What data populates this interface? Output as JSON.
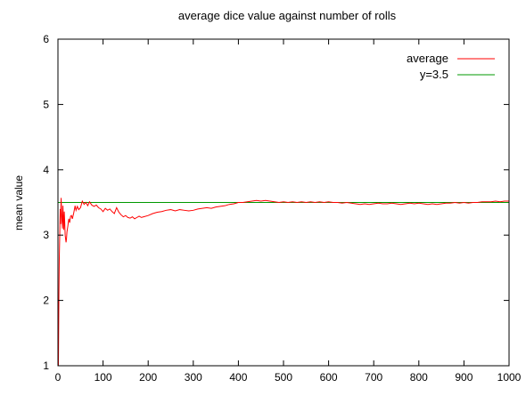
{
  "chart_data": {
    "type": "line",
    "title": "average dice value against number of rolls",
    "xlabel": "",
    "ylabel": "mean value",
    "xlim": [
      0,
      1000
    ],
    "ylim": [
      1,
      6
    ],
    "x_ticks": [
      0,
      100,
      200,
      300,
      400,
      500,
      600,
      700,
      800,
      900,
      1000
    ],
    "y_ticks": [
      1,
      2,
      3,
      4,
      5,
      6
    ],
    "grid": false,
    "legend_position": "top-right",
    "series": [
      {
        "name": "average",
        "color": "#ff0000",
        "points": [
          [
            1,
            1.0
          ],
          [
            2,
            2.0
          ],
          [
            3,
            2.67
          ],
          [
            4,
            3.0
          ],
          [
            5,
            3.4
          ],
          [
            6,
            3.17
          ],
          [
            7,
            3.57
          ],
          [
            8,
            3.38
          ],
          [
            9,
            3.22
          ],
          [
            10,
            3.1
          ],
          [
            11,
            3.45
          ],
          [
            12,
            3.25
          ],
          [
            13,
            3.08
          ],
          [
            14,
            3.36
          ],
          [
            15,
            3.2
          ],
          [
            16,
            3.0
          ],
          [
            17,
            2.94
          ],
          [
            18,
            2.89
          ],
          [
            19,
            2.95
          ],
          [
            20,
            3.05
          ],
          [
            22,
            3.14
          ],
          [
            24,
            3.25
          ],
          [
            26,
            3.19
          ],
          [
            28,
            3.29
          ],
          [
            30,
            3.3
          ],
          [
            32,
            3.25
          ],
          [
            35,
            3.34
          ],
          [
            38,
            3.45
          ],
          [
            40,
            3.38
          ],
          [
            43,
            3.44
          ],
          [
            46,
            3.39
          ],
          [
            50,
            3.42
          ],
          [
            54,
            3.52
          ],
          [
            58,
            3.47
          ],
          [
            62,
            3.5
          ],
          [
            66,
            3.45
          ],
          [
            70,
            3.51
          ],
          [
            75,
            3.46
          ],
          [
            80,
            3.44
          ],
          [
            85,
            3.46
          ],
          [
            90,
            3.42
          ],
          [
            95,
            3.4
          ],
          [
            100,
            3.36
          ],
          [
            105,
            3.41
          ],
          [
            110,
            3.38
          ],
          [
            115,
            3.4
          ],
          [
            120,
            3.36
          ],
          [
            125,
            3.33
          ],
          [
            130,
            3.42
          ],
          [
            135,
            3.35
          ],
          [
            140,
            3.31
          ],
          [
            145,
            3.28
          ],
          [
            150,
            3.3
          ],
          [
            155,
            3.27
          ],
          [
            160,
            3.26
          ],
          [
            165,
            3.28
          ],
          [
            170,
            3.25
          ],
          [
            175,
            3.27
          ],
          [
            180,
            3.29
          ],
          [
            185,
            3.27
          ],
          [
            190,
            3.28
          ],
          [
            200,
            3.3
          ],
          [
            210,
            3.33
          ],
          [
            220,
            3.35
          ],
          [
            230,
            3.36
          ],
          [
            240,
            3.38
          ],
          [
            250,
            3.39
          ],
          [
            260,
            3.37
          ],
          [
            270,
            3.39
          ],
          [
            280,
            3.38
          ],
          [
            290,
            3.37
          ],
          [
            300,
            3.38
          ],
          [
            310,
            3.4
          ],
          [
            320,
            3.41
          ],
          [
            330,
            3.42
          ],
          [
            340,
            3.41
          ],
          [
            350,
            3.43
          ],
          [
            360,
            3.44
          ],
          [
            370,
            3.45
          ],
          [
            380,
            3.47
          ],
          [
            390,
            3.48
          ],
          [
            400,
            3.5
          ],
          [
            410,
            3.5
          ],
          [
            420,
            3.51
          ],
          [
            430,
            3.52
          ],
          [
            440,
            3.53
          ],
          [
            450,
            3.52
          ],
          [
            460,
            3.53
          ],
          [
            470,
            3.52
          ],
          [
            480,
            3.51
          ],
          [
            490,
            3.5
          ],
          [
            500,
            3.51
          ],
          [
            510,
            3.5
          ],
          [
            520,
            3.51
          ],
          [
            530,
            3.5
          ],
          [
            540,
            3.51
          ],
          [
            550,
            3.5
          ],
          [
            560,
            3.51
          ],
          [
            570,
            3.5
          ],
          [
            580,
            3.51
          ],
          [
            590,
            3.5
          ],
          [
            600,
            3.51
          ],
          [
            610,
            3.5
          ],
          [
            620,
            3.5
          ],
          [
            630,
            3.49
          ],
          [
            640,
            3.5
          ],
          [
            650,
            3.49
          ],
          [
            660,
            3.48
          ],
          [
            670,
            3.47
          ],
          [
            680,
            3.48
          ],
          [
            690,
            3.47
          ],
          [
            700,
            3.48
          ],
          [
            710,
            3.49
          ],
          [
            720,
            3.48
          ],
          [
            730,
            3.48
          ],
          [
            740,
            3.49
          ],
          [
            750,
            3.48
          ],
          [
            760,
            3.47
          ],
          [
            770,
            3.48
          ],
          [
            780,
            3.49
          ],
          [
            790,
            3.48
          ],
          [
            800,
            3.49
          ],
          [
            810,
            3.48
          ],
          [
            820,
            3.47
          ],
          [
            830,
            3.48
          ],
          [
            840,
            3.47
          ],
          [
            850,
            3.48
          ],
          [
            860,
            3.49
          ],
          [
            870,
            3.49
          ],
          [
            880,
            3.5
          ],
          [
            890,
            3.49
          ],
          [
            900,
            3.5
          ],
          [
            910,
            3.49
          ],
          [
            920,
            3.5
          ],
          [
            930,
            3.5
          ],
          [
            940,
            3.51
          ],
          [
            950,
            3.51
          ],
          [
            960,
            3.51
          ],
          [
            970,
            3.52
          ],
          [
            980,
            3.51
          ],
          [
            990,
            3.52
          ],
          [
            1000,
            3.52
          ]
        ]
      },
      {
        "name": "y=3.5",
        "color": "#009900",
        "points": [
          [
            0,
            3.5
          ],
          [
            1000,
            3.5
          ]
        ]
      }
    ]
  }
}
